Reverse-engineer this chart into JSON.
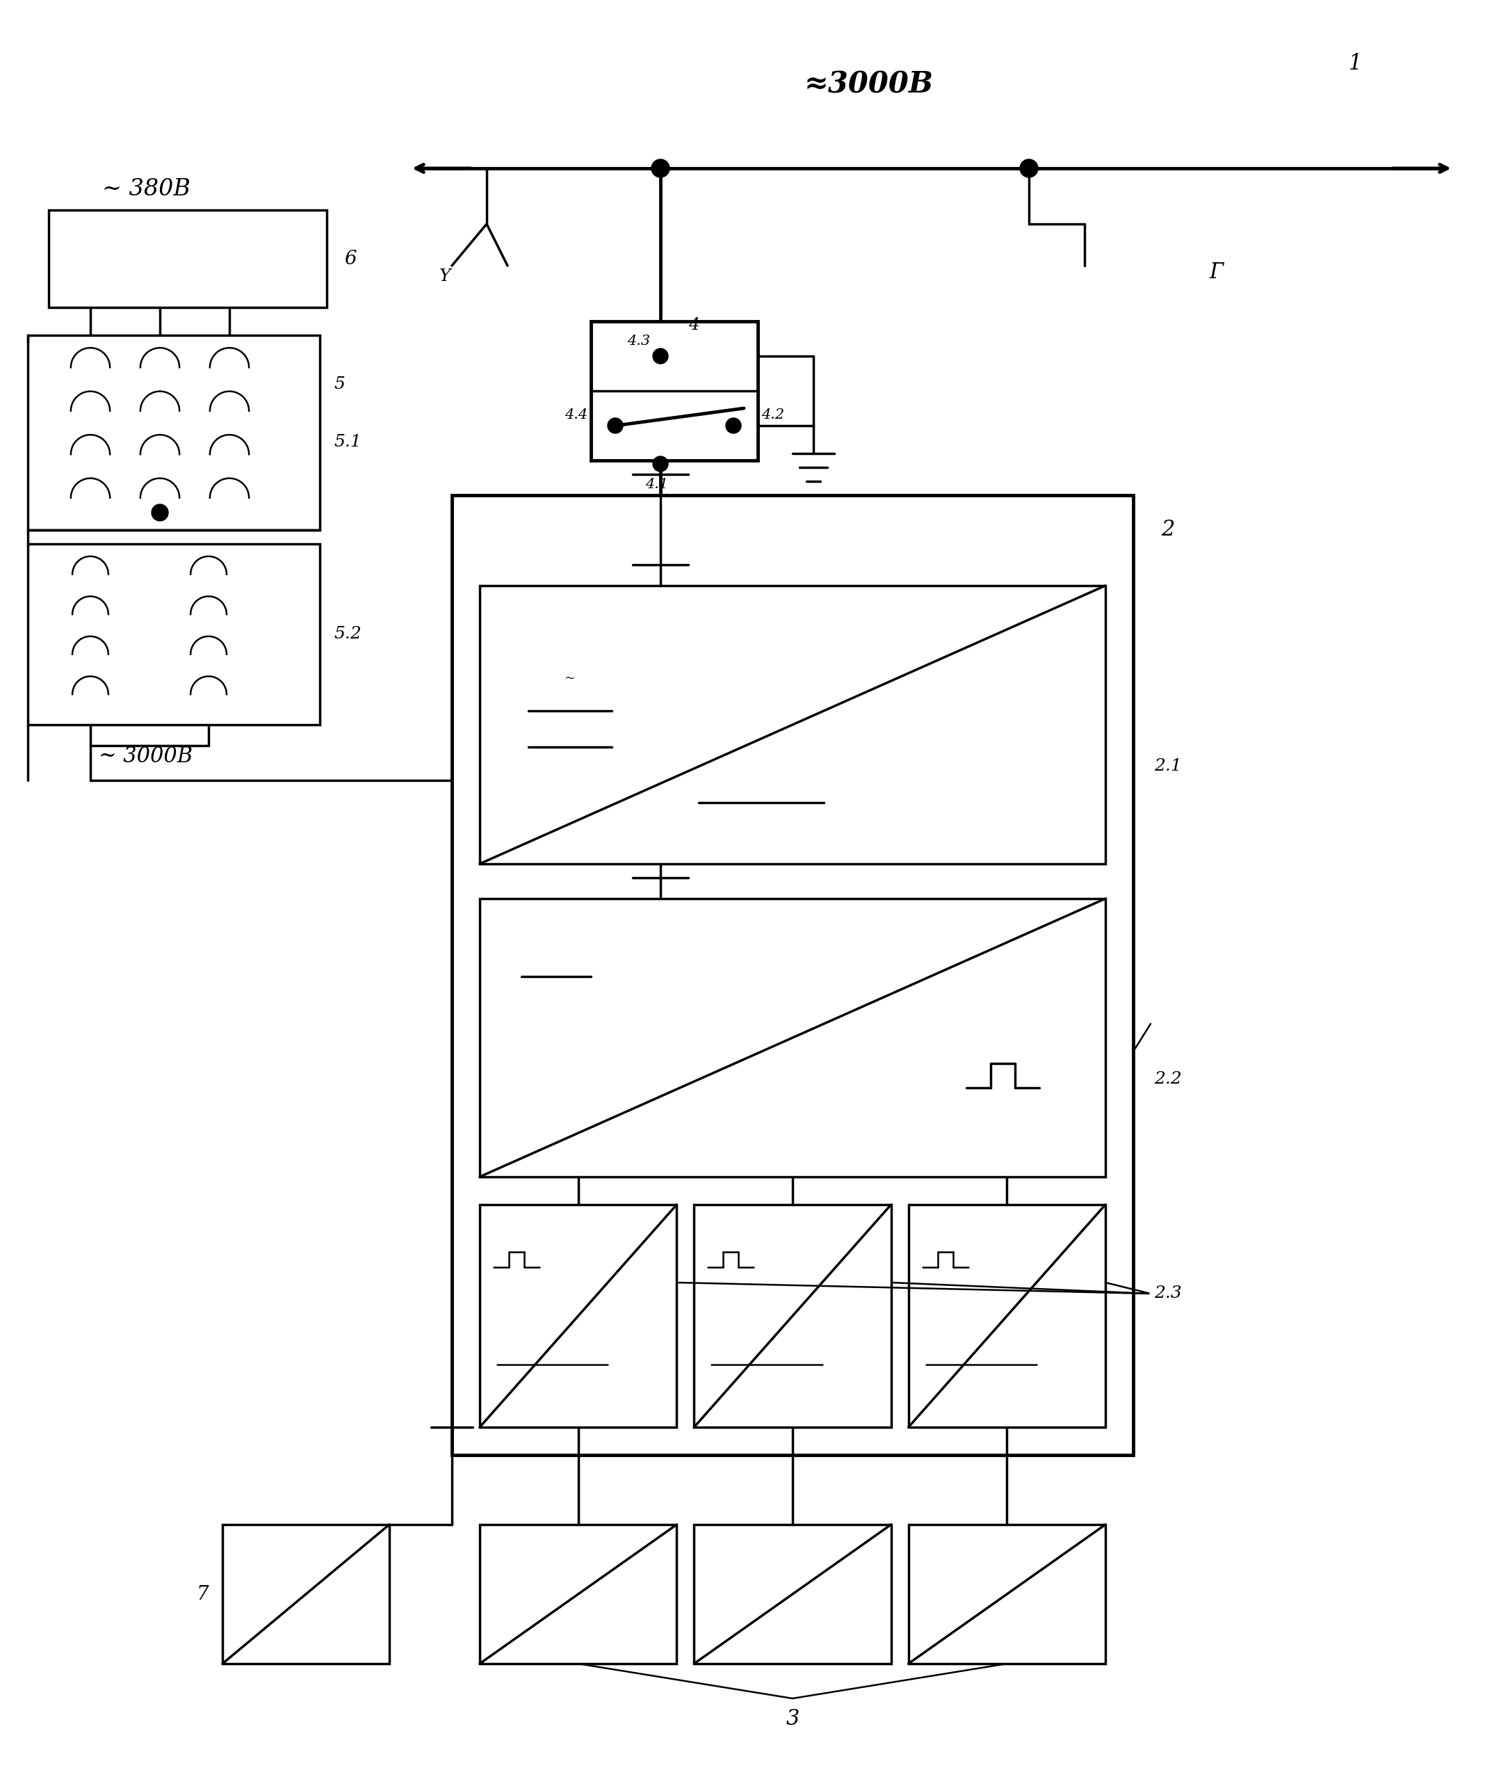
{
  "bg_color": "#ffffff",
  "line_color": "#000000",
  "lw": 2.5,
  "lw_thick": 3.5,
  "lw_thin": 1.8,
  "fig_w": 21.36,
  "fig_h": 25.42,
  "labels": {
    "title_top": "≈3000B",
    "label1": "1",
    "label2": "2",
    "label21": "2.1",
    "label22": "2.2",
    "label23": "2.3",
    "label3": "3",
    "label4": "4",
    "label41": "4.1",
    "label42": "4.2",
    "label43": "4.3",
    "label44": "4.4",
    "label5": "5",
    "label51": "5.1",
    "label52": "5.2",
    "label6": "6",
    "label7": "7",
    "label_380": "~ 380B",
    "label_3000": "~ 3000B",
    "label_G": "Г"
  }
}
